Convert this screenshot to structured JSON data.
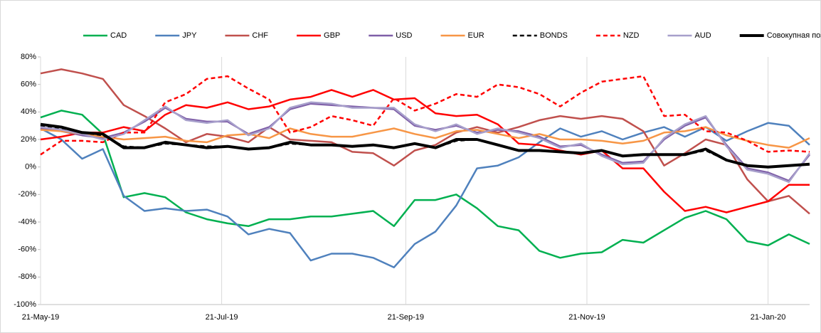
{
  "chart_data": {
    "type": "line",
    "x": [
      "2019-05-21",
      "2019-05-28",
      "2019-06-04",
      "2019-06-11",
      "2019-06-18",
      "2019-06-25",
      "2019-07-02",
      "2019-07-09",
      "2019-07-16",
      "2019-07-23",
      "2019-07-30",
      "2019-08-06",
      "2019-08-13",
      "2019-08-20",
      "2019-08-27",
      "2019-09-03",
      "2019-09-10",
      "2019-09-17",
      "2019-09-24",
      "2019-10-01",
      "2019-10-08",
      "2019-10-15",
      "2019-10-22",
      "2019-10-29",
      "2019-11-05",
      "2019-11-12",
      "2019-11-19",
      "2019-11-26",
      "2019-12-03",
      "2019-12-10",
      "2019-12-17",
      "2019-12-24",
      "2019-12-31",
      "2020-01-07",
      "2020-01-14",
      "2020-01-21",
      "2020-01-28",
      "2020-02-04"
    ],
    "xlim": [
      "2019-05-21",
      "2020-02-04"
    ],
    "xticks": [
      {
        "value": "2019-05-21",
        "label": "21-May-19"
      },
      {
        "value": "2019-07-21",
        "label": "21-Jul-19"
      },
      {
        "value": "2019-09-21",
        "label": "21-Sep-19"
      },
      {
        "value": "2019-11-21",
        "label": "21-Nov-19"
      },
      {
        "value": "2020-01-21",
        "label": "21-Jan-20"
      }
    ],
    "ylim": [
      -100,
      80
    ],
    "yticks": [
      {
        "value": -100,
        "label": "-100%"
      },
      {
        "value": -80,
        "label": "-80%"
      },
      {
        "value": -60,
        "label": "-60%"
      },
      {
        "value": -40,
        "label": "-40%"
      },
      {
        "value": -20,
        "label": "-20%"
      },
      {
        "value": 0,
        "label": "0%"
      },
      {
        "value": 20,
        "label": "20%"
      },
      {
        "value": 40,
        "label": "40%"
      },
      {
        "value": 60,
        "label": "60%"
      },
      {
        "value": 80,
        "label": "80%"
      }
    ],
    "xgrid": true,
    "legend": "top",
    "series": [
      {
        "name": "CAD",
        "color": "#00b050",
        "values": [
          36,
          41,
          38,
          24,
          -22,
          -19,
          -22,
          -33,
          -38,
          -41,
          -43,
          -38,
          -38,
          -36,
          -36,
          -34,
          -32,
          -43,
          -24,
          -24,
          -20,
          -30,
          -43,
          -46,
          -61,
          -66,
          -63,
          -62,
          -53,
          -55,
          -46,
          -37,
          -32,
          -38,
          -54,
          -57,
          -49,
          -56
        ]
      },
      {
        "name": "JPY",
        "color": "#4f81bd",
        "values": [
          28,
          20,
          6,
          13,
          -21,
          -32,
          -30,
          -32,
          -31,
          -36,
          -49,
          -45,
          -48,
          -68,
          -63,
          -63,
          -66,
          -73,
          -56,
          -47,
          -28,
          -1,
          1,
          7,
          18,
          28,
          22,
          26,
          20,
          25,
          29,
          22,
          29,
          19,
          26,
          32,
          30,
          16
        ]
      },
      {
        "name": "CHF",
        "color": "#c0504d",
        "values": [
          68,
          71,
          68,
          64,
          45,
          37,
          28,
          18,
          24,
          22,
          18,
          29,
          20,
          19,
          18,
          11,
          10,
          1,
          12,
          16,
          25,
          29,
          25,
          29,
          34,
          37,
          35,
          37,
          35,
          26,
          1,
          10,
          20,
          16,
          -9,
          -25,
          -21,
          -34
        ]
      },
      {
        "name": "GBP",
        "color": "#ff0000",
        "values": [
          20,
          22,
          25,
          25,
          29,
          26,
          38,
          45,
          43,
          47,
          42,
          44,
          49,
          51,
          56,
          51,
          56,
          49,
          50,
          39,
          37,
          38,
          31,
          17,
          16,
          12,
          9,
          12,
          -1,
          -1,
          -18,
          -32,
          -29,
          -33,
          -29,
          -25,
          -13,
          -13
        ]
      },
      {
        "name": "USD",
        "color": "#7f5fa8",
        "values": [
          28,
          26,
          23,
          21,
          25,
          33,
          43,
          35,
          33,
          33,
          24,
          29,
          42,
          46,
          45,
          44,
          43,
          42,
          30,
          27,
          30,
          25,
          27,
          26,
          22,
          15,
          16,
          9,
          3,
          4,
          20,
          30,
          36,
          16,
          -1,
          -4,
          -10,
          9
        ]
      },
      {
        "name": "EUR",
        "color": "#f79646",
        "values": [
          27,
          26,
          24,
          22,
          20,
          21,
          22,
          19,
          18,
          23,
          24,
          21,
          28,
          24,
          22,
          22,
          25,
          28,
          24,
          21,
          26,
          27,
          24,
          21,
          24,
          20,
          20,
          19,
          17,
          19,
          25,
          26,
          29,
          23,
          19,
          16,
          14,
          21
        ]
      },
      {
        "name": "BONDS",
        "color": "#000000",
        "dash": true,
        "values": [
          30,
          28,
          25,
          23,
          15,
          14,
          17,
          16,
          15,
          15,
          13,
          14,
          17,
          16,
          16,
          15,
          16,
          14,
          17,
          14,
          19,
          20,
          16,
          12,
          12,
          11,
          10,
          12,
          8,
          9,
          9,
          9,
          12,
          5,
          1,
          0,
          1,
          2
        ]
      },
      {
        "name": "NZD",
        "color": "#ff0000",
        "dash": true,
        "values": [
          9,
          19,
          19,
          18,
          25,
          25,
          47,
          53,
          64,
          66,
          57,
          49,
          25,
          29,
          37,
          34,
          30,
          50,
          41,
          46,
          53,
          51,
          60,
          58,
          53,
          44,
          54,
          62,
          64,
          66,
          37,
          38,
          26,
          25,
          19,
          11,
          12,
          11
        ]
      },
      {
        "name": "AUD",
        "color": "#a79fcb",
        "values": [
          29,
          27,
          24,
          20,
          24,
          34,
          44,
          34,
          32,
          34,
          23,
          28,
          43,
          47,
          46,
          43,
          43,
          43,
          31,
          26,
          31,
          24,
          28,
          25,
          21,
          14,
          17,
          8,
          2,
          3,
          21,
          31,
          37,
          15,
          -2,
          -5,
          -11,
          10
        ]
      },
      {
        "name": "Совокупная позиция",
        "color": "#000000",
        "bold": true,
        "values": [
          31,
          29,
          25,
          24,
          14,
          14,
          18,
          16,
          14,
          15,
          13,
          14,
          18,
          16,
          16,
          15,
          16,
          14,
          17,
          14,
          20,
          20,
          16,
          12,
          12,
          11,
          10,
          12,
          8,
          9,
          9,
          9,
          13,
          5,
          1,
          0,
          1,
          2
        ]
      }
    ]
  }
}
